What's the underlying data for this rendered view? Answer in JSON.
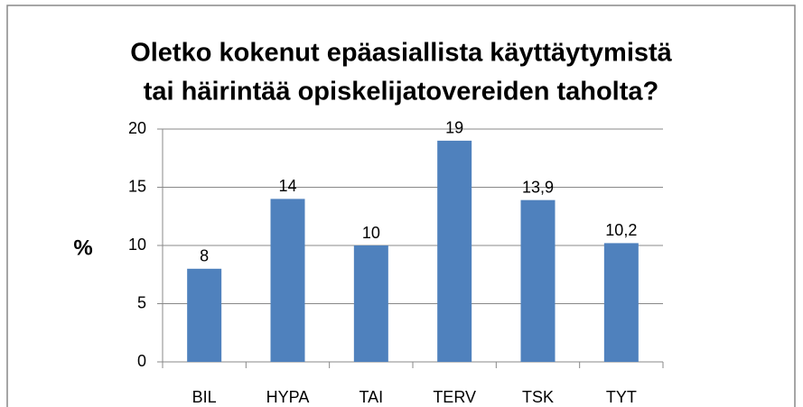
{
  "chart_data": {
    "type": "bar",
    "title": [
      "Oletko kokenut epäasiallista käyttäytymistä",
      "tai häirintää opiskelijatovereiden taholta?"
    ],
    "y_label": "%",
    "categories": [
      "BIL",
      "HYPA",
      "TAI",
      "TERV",
      "TSK",
      "TYT"
    ],
    "values": [
      8,
      14,
      10,
      19,
      13.9,
      10.2
    ],
    "value_labels": [
      "8",
      "14",
      "10",
      "19",
      "13,9",
      "10,2"
    ],
    "color": "#4f81bd",
    "ylim": [
      0,
      20
    ],
    "yticks": [
      0,
      5,
      10,
      15,
      20
    ],
    "grid": true
  }
}
